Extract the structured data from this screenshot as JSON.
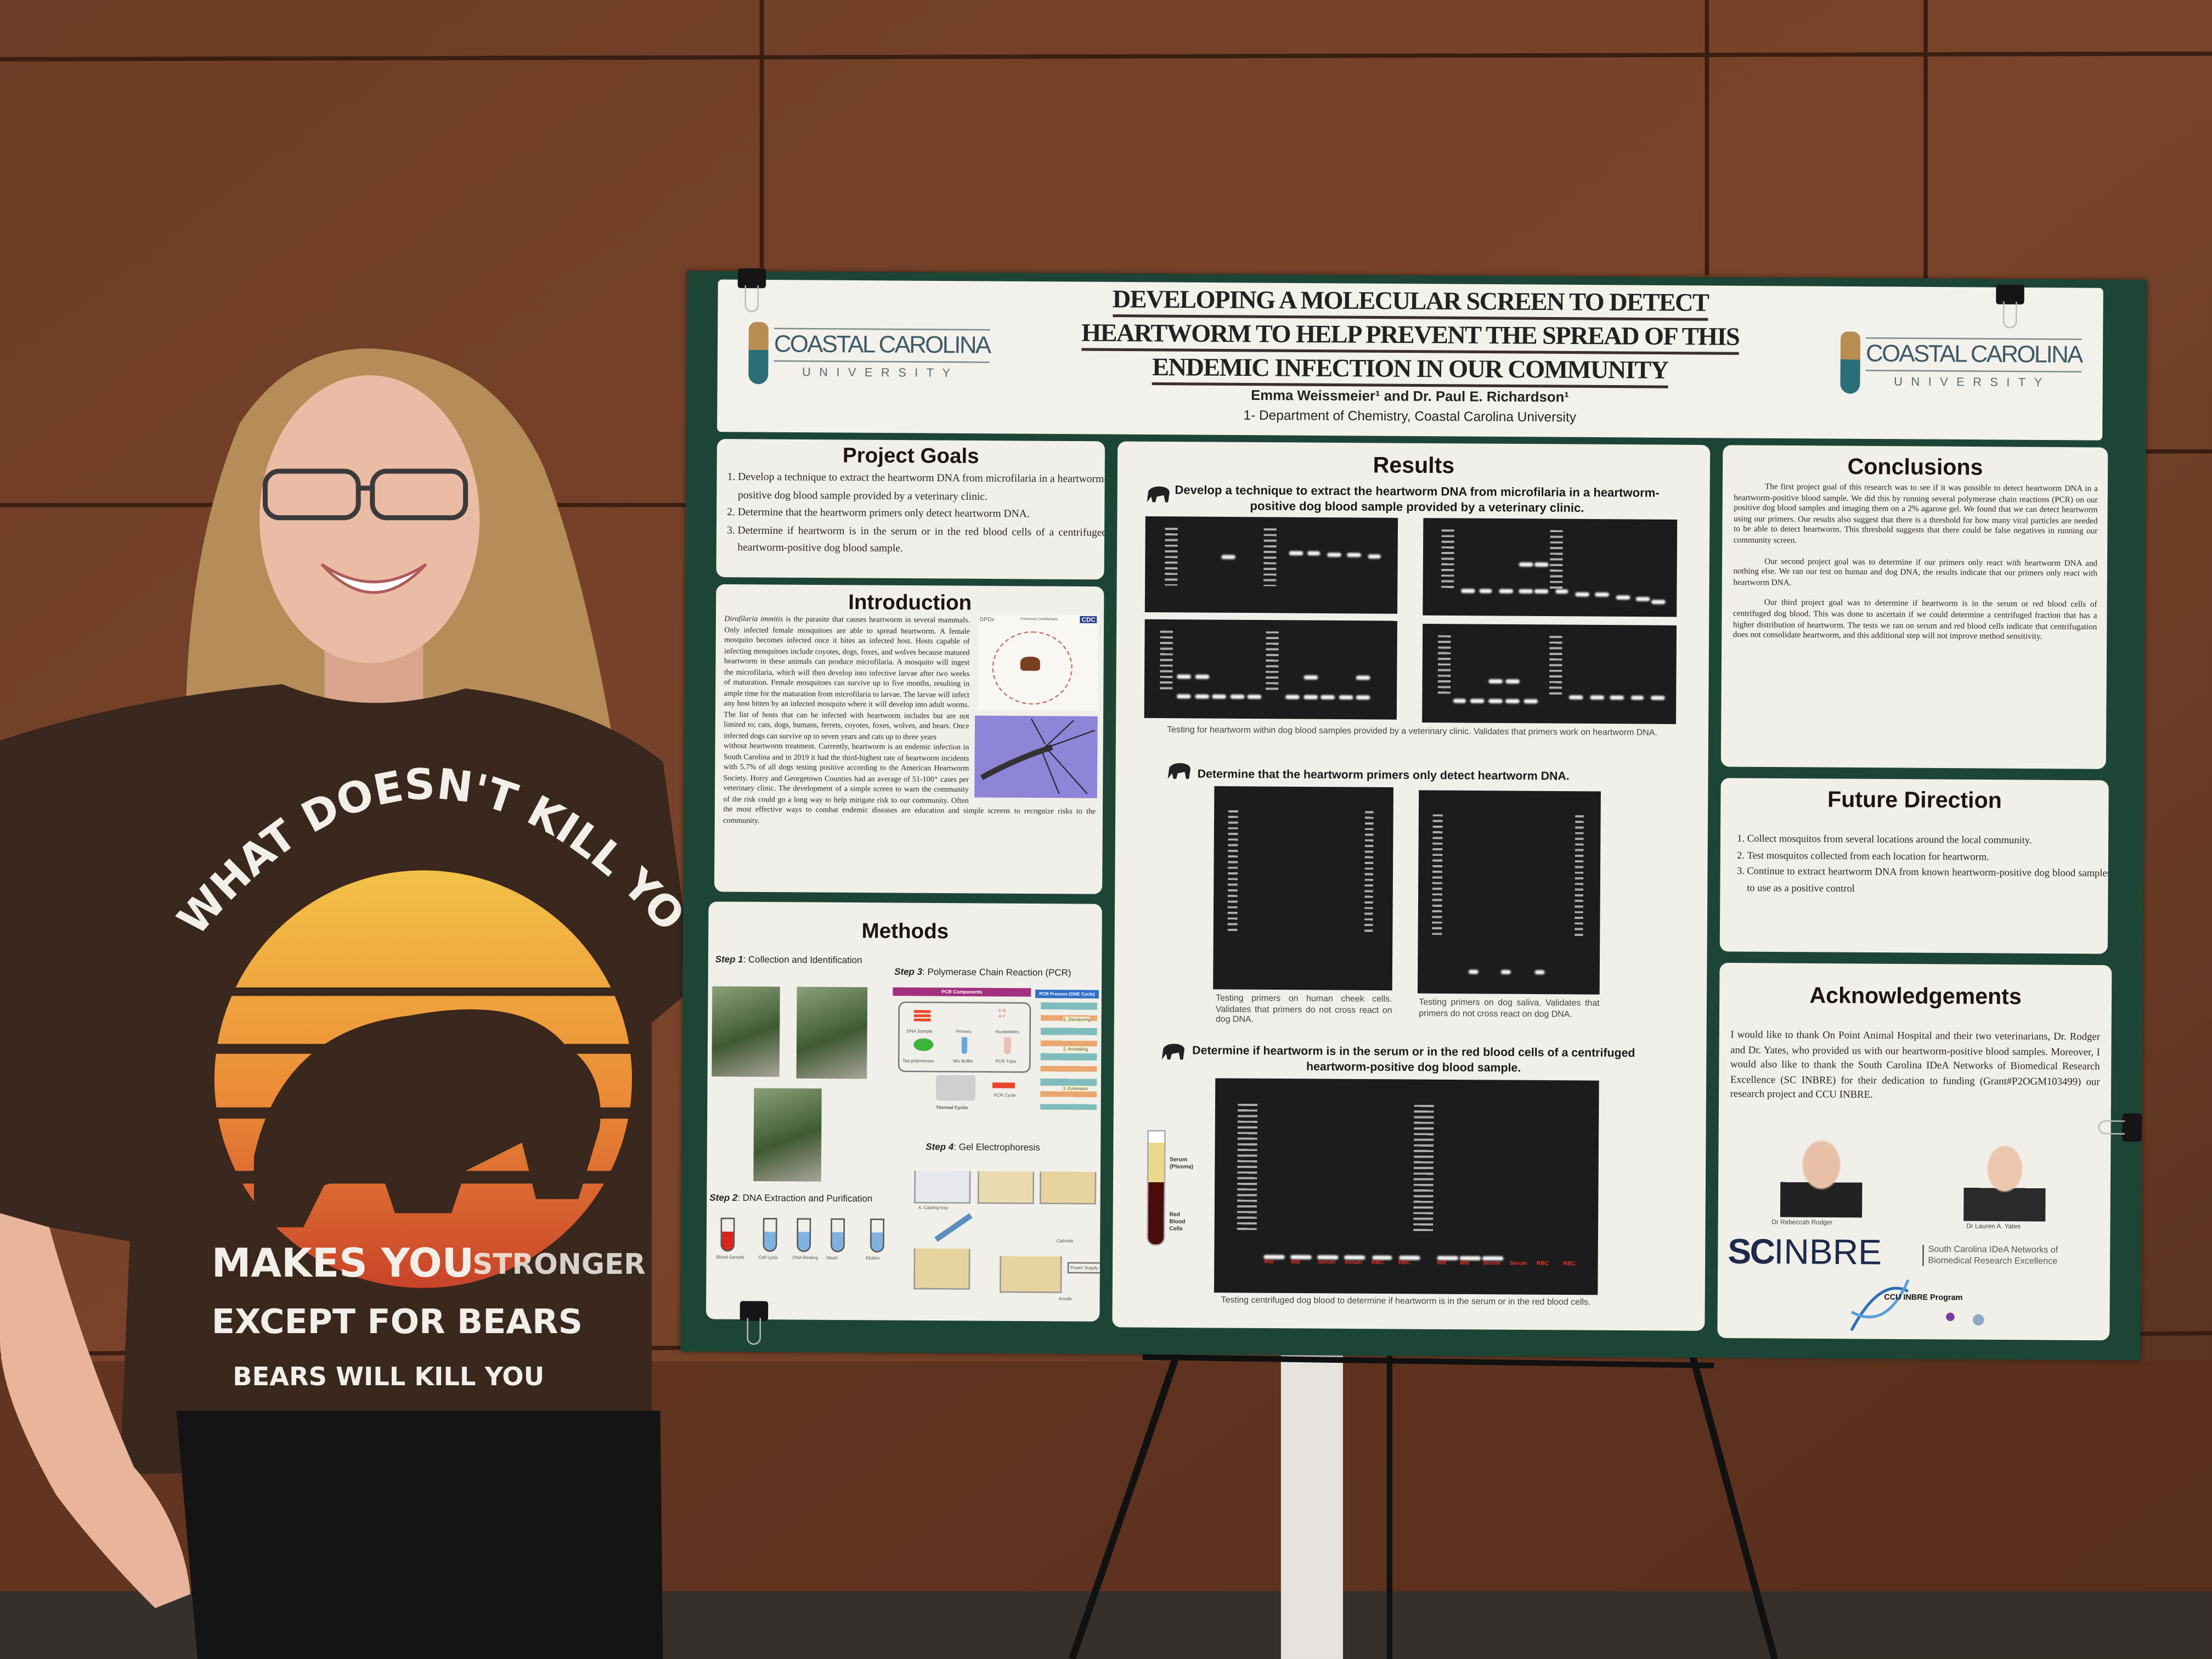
{
  "poster": {
    "title_lines": [
      "DEVELOPING A MOLECULAR SCREEN TO DETECT",
      "HEARTWORM TO HELP PREVENT THE SPREAD OF THIS",
      "ENDEMIC INFECTION IN OUR COMMUNITY"
    ],
    "authors": "Emma Weissmeier¹ and Dr. Paul E. Richardson¹",
    "affiliation": "1- Department of Chemistry, Coastal Carolina University",
    "logo": {
      "name": "COASTAL CAROLINA",
      "sub": "UNIVERSITY"
    },
    "colors": {
      "border": "#1d4536",
      "panel": "#f1efe9",
      "gel": "#1c1c1c"
    }
  },
  "project_goals": {
    "title": "Project Goals",
    "items": [
      "Develop a technique to extract the heartworm DNA from microfilaria in a heartworm-positive dog blood sample provided by a veterinary clinic.",
      "Determine that the heartworm primers only detect heartworm DNA.",
      "Determine if heartworm is in the serum or in the red blood cells of a centrifuged heartworm-positive dog blood sample."
    ]
  },
  "introduction": {
    "title": "Introduction",
    "species": "Dirofilaria immitis",
    "text_a": " is the parasite that causes heartworm in several mammals. Only infected female mosquitoes are able to spread heartworm. A female mosquito becomes infected once it bites an infected host. Hosts capable of infecting mosquitoes include coyotes, dogs, foxes, and wolves because matured heartworm in these animals can produce microfilaria. A mosquito will ingest the microfilaria, which will then develop into infective larvae after two weeks of maturation. Female mosquitoes can survive up to five months, resulting in ample time for the maturation from microfilaria to larvae. The larvae will infect any host bitten by an infected mosquito where it will develop into adult worms. The list of hosts that can be infected with heartworm includes but are not limited to; cats, dogs, humans, ferrets, coyotes, foxes, wolves, and bears. Once infected dogs can survive up to seven years and cats up to three years",
    "text_b": "without heartworm treatment. Currently, heartworm is an endemic infection in South Carolina and in 2019 it had the third-highest rate of heartworm incidents with 5.7% of all dogs testing positive according to the American Heartworm Society. Horry and Georgetown Counties had an average of 51-100⁺ cases per veterinary clinic. The development of a simple screen to warn the community of the risk could go a long way to help mitigate risk to our community.  Often the most effective ways to combat endemic diseases are education and simple screens to recognize risks to the community.",
    "figure_labels": {
      "source": "DPDx",
      "agency": "CDC",
      "figure_title": "Pulmonary Dirofilariasis"
    }
  },
  "methods": {
    "title": "Methods",
    "step1": {
      "num": "Step 1",
      "label": ": Collection and Identification"
    },
    "step2": {
      "num": "Step 2",
      "label": ": DNA Extraction and Purification",
      "tubes": [
        "Blood Sample",
        "Cell Lysis",
        "DNA Binding",
        "Wash",
        "Elution"
      ]
    },
    "step3": {
      "num": "Step 3",
      "label": ": Polymerase Chain Reaction (PCR)",
      "components_header": "PCR Components",
      "process_header": "PCR Process  (ONE Cycle)",
      "components": [
        "DNA Sample",
        "Primers",
        "Nucleotides",
        "Taq polymerase",
        "Mix Buffer",
        "PCR Tube"
      ],
      "nucleotides": [
        "C",
        "G",
        "A",
        "T"
      ],
      "machine": "Thermal Cycler",
      "cycle": "PCR Cycle",
      "phases": [
        "1. Denaturing",
        "2. Annealing",
        "3. Extension"
      ]
    },
    "step4": {
      "num": "Step 4",
      "label": ": Gel Electrophoresis",
      "labels": [
        "A. Casting tray",
        "Cathode",
        "Anode",
        "Power Supply"
      ]
    }
  },
  "results": {
    "title": "Results",
    "section1": {
      "heading": "Develop a technique to extract the heartworm DNA from microfilaria in a heartworm-positive dog blood sample provided by a veterinary clinic.",
      "caption": "Testing for heartworm within dog blood samples provided by a veterinary clinic. Validates that primers work on heartworm DNA."
    },
    "section2": {
      "heading": "Determine that the heartworm primers only detect heartworm DNA.",
      "caption_left": "Testing primers on human cheek cells. Validates that primers do not cross react on dog DNA.",
      "caption_right": "Testing primers on dog saliva. Validates that primers do not cross react on dog DNA."
    },
    "section3": {
      "heading": "Determine if heartworm is in the serum or in the red blood cells of a centrifuged heartworm-positive dog blood sample.",
      "tube_labels": [
        "Serum (Plasma)",
        "Red Blood Cells"
      ],
      "lane_labels": [
        "WB",
        "WB",
        "Serum",
        "Serum",
        "RBC",
        "RBC",
        "WB",
        "WB",
        "Serum",
        "Serum",
        "RBC",
        "RBC"
      ],
      "caption": "Testing centrifuged dog blood to determine if heartworm is in the serum or in the red blood cells."
    }
  },
  "conclusions": {
    "title": "Conclusions",
    "paragraphs": [
      "The first project goal of this research was to see if it was possible to detect heartworm DNA in a heartworm-positive blood sample. We did this by running several polymerase chain reactions (PCR) on our positive dog blood samples and imaging them on a 2% agarose gel. We found that we can detect heartworm using our primers. Our results also suggest that there is a threshold for how many viral particles are needed to be able to detect heartworm. This threshold suggests that there could be false negatives in running our community screen.",
      "Our second project goal was to determine if our primers only react with heartworm DNA and nothing else. We ran our test on human and dog DNA, the results indicate that our primers only react with heartworm DNA.",
      "Our third project goal was to determine if heartworm is in the serum or red blood cells of centrifuged dog blood. This was done to ascertain if we could determine a centrifuged fraction that has a higher distribution of heartworm. The tests we ran on serum and red blood cells indicate that centrifugation does not consolidate heartworm, and this additional step will not improve method sensitivity."
    ]
  },
  "future_direction": {
    "title": "Future Direction",
    "items": [
      "Collect mosquitos from several locations around the local community.",
      "Test mosquitos collected from each location for heartworm.",
      "Continue to extract heartworm DNA from known heartworm-positive dog blood samples to use as a positive control"
    ]
  },
  "acknowledgements": {
    "title": "Acknowledgements",
    "text": "I would like to thank On Point Animal Hospital and their two veterinarians, Dr. Rodger and Dr. Yates, who provided us with our heartworm-positive blood samples. Moreover, I would also like to thank the South Carolina IDeA Networks of Biomedical Research Excellence (SC INBRE) for their dedication to funding (Grant#P2OGM103499) our research project and CCU INBRE.",
    "people": [
      "Dr Rebeccah Rodger",
      "Dr Lauren A. Yates"
    ],
    "scinbre": {
      "sc": "SC",
      "inbre": "INBRE",
      "line1": "South Carolina IDeA Networks of",
      "line2": "Biomedical Research Excellence"
    },
    "ccu_inbre": "CCU INBRE Program"
  },
  "shirt": {
    "arc_text": "WHAT DOESN'T KILL YOU",
    "line1": "MAKES YOU",
    "line1_faded": "STRONGER",
    "line2": "EXCEPT FOR BEARS",
    "line3": "BEARS WILL KILL YOU"
  }
}
